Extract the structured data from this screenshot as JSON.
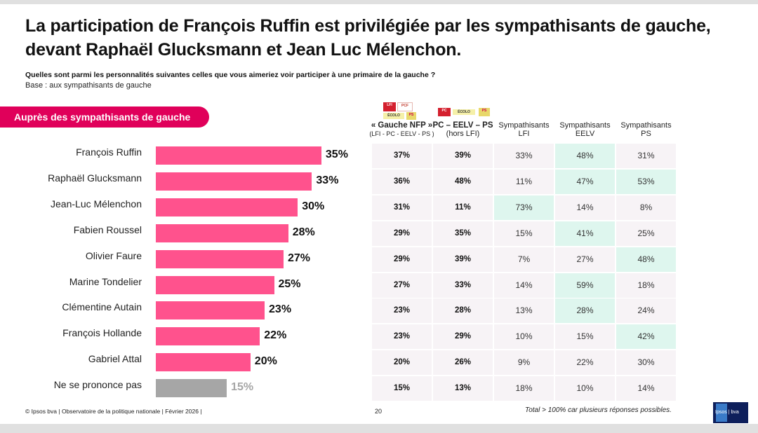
{
  "header": {
    "title_line1": "La participation de François Ruffin est privilégiée par les sympathisants de gauche,",
    "title_line2": "devant Raphaël Glucksmann et Jean Luc Mélenchon.",
    "question": "Quelles sont parmi les personnalités suivantes celles que vous aimeriez voir participer à une primaire de la gauche ?",
    "base": "Base : aux sympathisants de gauche"
  },
  "section_tab": "Auprès des sympathisants de gauche",
  "colors": {
    "accent": "#e0005a",
    "bar": "#ff528d",
    "bar_nsp": "#a6a6a6",
    "cell": "#f7f3f6",
    "highlight": "#def6ee"
  },
  "logos": {
    "col1": [
      "lfi-logo",
      "pcf-logo",
      "ecologistes-logo",
      "ps-logo"
    ],
    "col2": [
      "pcf-logo",
      "ecologistes-logo",
      "ps-logo"
    ]
  },
  "table_headers": [
    {
      "line1": "« Gauche NFP »",
      "line2": "(LFI - PC - EELV - PS )",
      "style": "bold"
    },
    {
      "line1": "PC – EELV – PS",
      "line2": "(hors LFI)",
      "style": "bold"
    },
    {
      "line1": "Sympathisants",
      "line2": "LFI",
      "style": "normal"
    },
    {
      "line1": "Sympathisants",
      "line2": "EELV",
      "style": "normal"
    },
    {
      "line1": "Sympathisants",
      "line2": "PS",
      "style": "normal"
    }
  ],
  "chart_data": {
    "type": "bar",
    "orientation": "horizontal",
    "title": "Auprès des sympathisants de gauche",
    "unit": "%",
    "xlim": [
      0,
      40
    ],
    "categories": [
      "François Ruffin",
      "Raphaël Glucksmann",
      "Jean-Luc Mélenchon",
      "Fabien Roussel",
      "Olivier Faure",
      "Marine Tondelier",
      "Clémentine Autain",
      "François Hollande",
      "Gabriel Attal",
      "Ne se prononce pas"
    ],
    "values": [
      35,
      33,
      30,
      28,
      27,
      25,
      23,
      22,
      20,
      15
    ],
    "value_labels": [
      "35%",
      "33%",
      "30%",
      "28%",
      "27%",
      "25%",
      "23%",
      "22%",
      "20%",
      "15%"
    ],
    "nsp_index": 9,
    "table": {
      "type": "table",
      "columns": [
        "« Gauche NFP » (LFI - PC - EELV - PS)",
        "PC – EELV – PS (hors LFI)",
        "Sympathisants LFI",
        "Sympathisants EELV",
        "Sympathisants PS"
      ],
      "rows": [
        [
          "37%",
          "39%",
          "33%",
          "48%",
          "31%"
        ],
        [
          "36%",
          "48%",
          "11%",
          "47%",
          "53%"
        ],
        [
          "31%",
          "11%",
          "73%",
          "14%",
          "8%"
        ],
        [
          "29%",
          "35%",
          "15%",
          "41%",
          "25%"
        ],
        [
          "29%",
          "39%",
          "7%",
          "27%",
          "48%"
        ],
        [
          "27%",
          "33%",
          "14%",
          "59%",
          "18%"
        ],
        [
          "23%",
          "28%",
          "13%",
          "28%",
          "24%"
        ],
        [
          "23%",
          "29%",
          "10%",
          "15%",
          "42%"
        ],
        [
          "20%",
          "26%",
          "9%",
          "22%",
          "30%"
        ],
        [
          "15%",
          "13%",
          "18%",
          "10%",
          "14%"
        ]
      ],
      "highlighted": [
        [
          0,
          3
        ],
        [
          1,
          3
        ],
        [
          1,
          4
        ],
        [
          2,
          2
        ],
        [
          3,
          3
        ],
        [
          4,
          4
        ],
        [
          5,
          3
        ],
        [
          6,
          3
        ],
        [
          7,
          4
        ]
      ]
    }
  },
  "footer": {
    "source": "© Ipsos bva | Observatoire de la politique nationale | Février 2026 |",
    "page": "20",
    "note": "Total > 100% car plusieurs réponses possibles.",
    "brand": "Ipsos | bva"
  }
}
